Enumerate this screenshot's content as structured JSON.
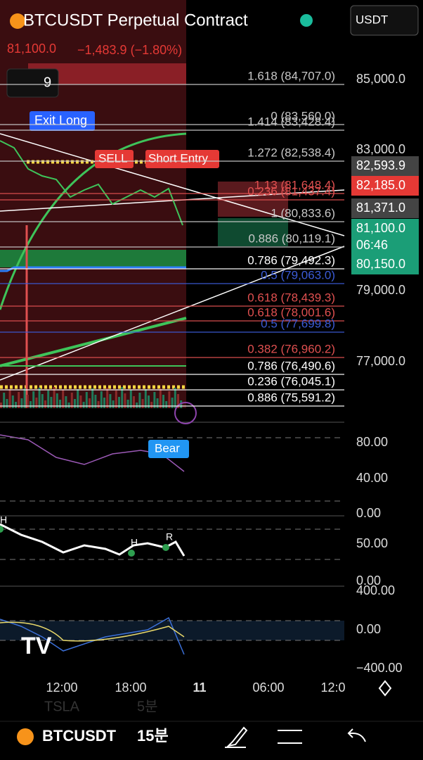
{
  "header": {
    "symbol": "BTCUSDT Perpetual Contract",
    "currency": "USDT"
  },
  "quote": {
    "price": "81,100.0",
    "change": "−1,483.9 (−1.80%)"
  },
  "indicator_count": "9",
  "signals": {
    "exit_long": "Exit Long",
    "sell": "SELL",
    "short_entry": "Short Entry",
    "bear": "Bear"
  },
  "levels": [
    {
      "label": "1.618 (84,707.0)",
      "color": "#c8c8c8"
    },
    {
      "label": "0 (83,560.0)",
      "color": "#c8c8c8"
    },
    {
      "label": "1.414 (83,428.4)",
      "color": "#c8c8c8"
    },
    {
      "label": "1.272 (82,538.4)",
      "color": "#c8c8c8"
    },
    {
      "label": "1.13 (81,648.4)",
      "color": "#e05050"
    },
    {
      "label": "0.236 (81,437.4)",
      "color": "#e05050"
    },
    {
      "label": "1 (80,833.6)",
      "color": "#c8c8c8"
    },
    {
      "label": "0.886 (80,119.1)",
      "color": "#c8c8c8"
    },
    {
      "label": "0.786 (79,492.3)",
      "color": "#ffffff"
    },
    {
      "label": "0.5 (79,063.0)",
      "color": "#3b5bd6"
    },
    {
      "label": "0.618 (78,439.3)",
      "color": "#e05050"
    },
    {
      "label": "0.618 (78,001.6)",
      "color": "#e05050"
    },
    {
      "label": "0.5 (77,699.8)",
      "color": "#3b5bd6"
    },
    {
      "label": "0.382 (76,960.2)",
      "color": "#e05050"
    },
    {
      "label": "0.786 (76,490.6)",
      "color": "#ffffff"
    },
    {
      "label": "0.236 (76,045.1)",
      "color": "#ffffff"
    },
    {
      "label": "0.886 (75,591.2)",
      "color": "#ffffff"
    }
  ],
  "price_axis": [
    "85,000.0",
    "83,000.0",
    "79,000.0",
    "77,000.0"
  ],
  "price_tags": [
    {
      "label": "82,593.9",
      "color": "#444444"
    },
    {
      "label": "82,185.0",
      "color": "#e53935"
    },
    {
      "label": "81,371.0",
      "color": "#444444"
    },
    {
      "label": "81,100.0",
      "color": "#1b9e77",
      "sub": "06:46"
    },
    {
      "label": "80,150.0",
      "color": "#1b9e77"
    }
  ],
  "pane1_axis": [
    "80.00",
    "40.00",
    "0.00"
  ],
  "pane2_axis": [
    "50.00",
    "0.00"
  ],
  "pane3_axis": [
    "400.00",
    "0.00",
    "−400.00"
  ],
  "pane2_marks": [
    "H",
    "H",
    "R"
  ],
  "time_axis": [
    "12:00",
    "18:00",
    "11",
    "06:00",
    "12:0"
  ],
  "footer": {
    "symbol": "BTCUSDT",
    "interval": "15분",
    "ghost_symbol": "TSLA",
    "ghost_interval": "5분"
  }
}
